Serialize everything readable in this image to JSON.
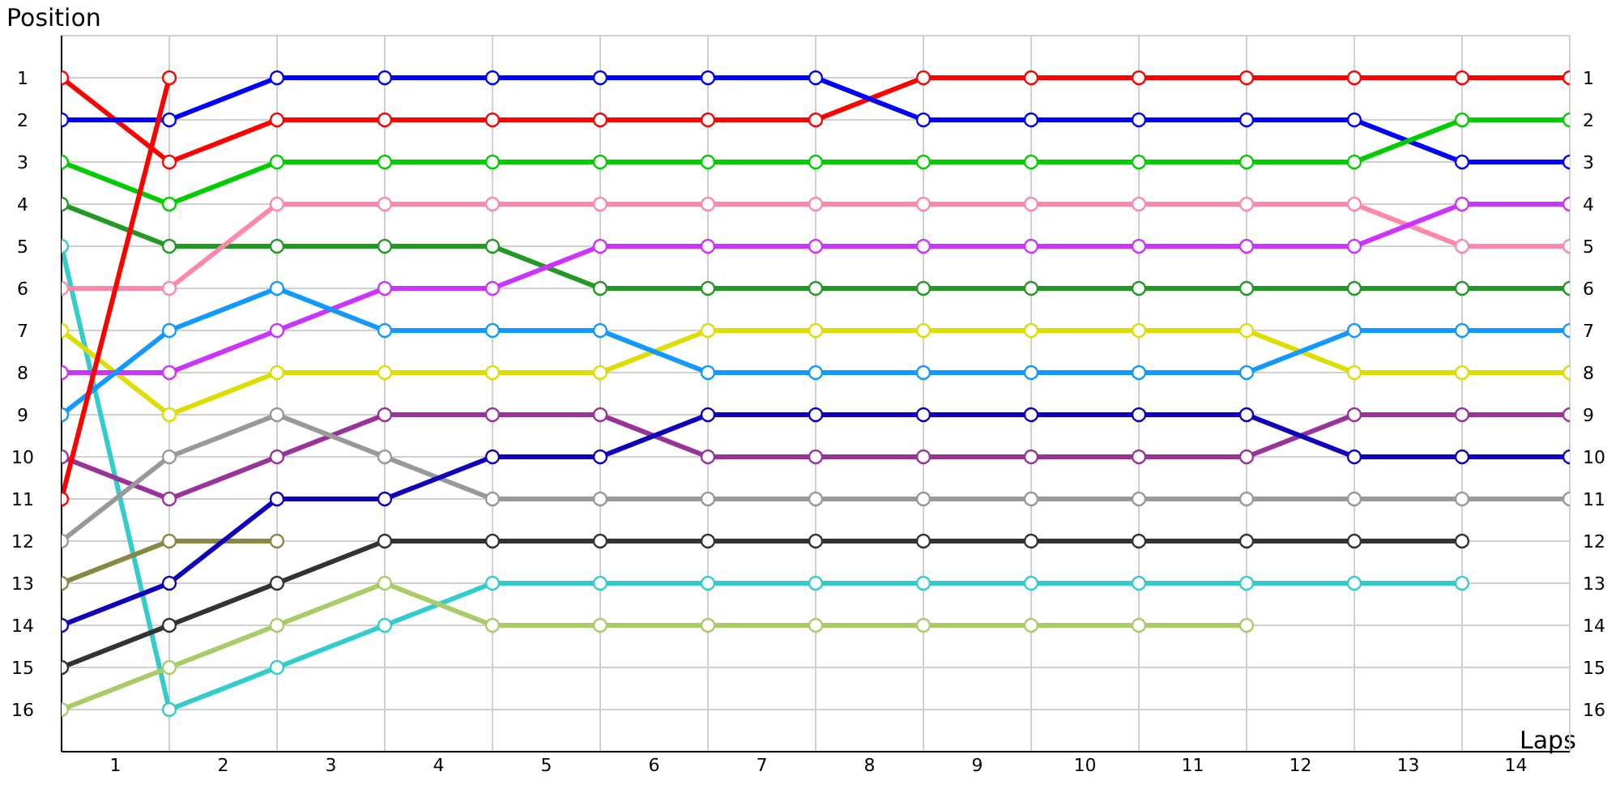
{
  "chart_data": {
    "type": "line",
    "xlabel": "Laps",
    "ylabel": "Position",
    "xlim": [
      0,
      14
    ],
    "xticks": [
      {
        "value": 0,
        "label": null
      },
      {
        "value": 0.5,
        "label": "1"
      },
      {
        "value": 1,
        "label": null
      },
      {
        "value": 1.5,
        "label": "2"
      },
      {
        "value": 2,
        "label": null
      },
      {
        "value": 2.5,
        "label": "3"
      },
      {
        "value": 3,
        "label": null
      },
      {
        "value": 3.5,
        "label": "4"
      },
      {
        "value": 4,
        "label": null
      },
      {
        "value": 4.5,
        "label": "5"
      },
      {
        "value": 5,
        "label": null
      },
      {
        "value": 5.5,
        "label": "6"
      },
      {
        "value": 6,
        "label": null
      },
      {
        "value": 6.5,
        "label": "7"
      },
      {
        "value": 7,
        "label": null
      },
      {
        "value": 7.5,
        "label": "8"
      },
      {
        "value": 8,
        "label": null
      },
      {
        "value": 8.5,
        "label": "9"
      },
      {
        "value": 9,
        "label": null
      },
      {
        "value": 9.5,
        "label": "10"
      },
      {
        "value": 10,
        "label": null
      },
      {
        "value": 10.5,
        "label": "11"
      },
      {
        "value": 11,
        "label": null
      },
      {
        "value": 11.5,
        "label": "12"
      },
      {
        "value": 12,
        "label": null
      },
      {
        "value": 12.5,
        "label": "13"
      },
      {
        "value": 13,
        "label": null
      },
      {
        "value": 13.5,
        "label": "14"
      },
      {
        "value": 14,
        "label": null
      }
    ],
    "ylim": [
      17,
      0
    ],
    "yticks": [
      1,
      2,
      3,
      4,
      5,
      6,
      7,
      8,
      9,
      10,
      11,
      12,
      13,
      14,
      15,
      16
    ],
    "y2lim": [
      17,
      0
    ],
    "y2ticks": [
      1,
      2,
      3,
      4,
      5,
      6,
      7,
      8,
      9,
      10,
      11,
      12,
      13,
      14,
      15,
      16
    ],
    "x": [
      0,
      1,
      2,
      3,
      4,
      5,
      6,
      7,
      8,
      9,
      10,
      11,
      12,
      13,
      14
    ],
    "grid": true,
    "marker": "circle",
    "line_style": "solid",
    "series": [
      {
        "color": "#ff0000",
        "values": [
          1,
          3,
          2,
          2,
          2,
          2,
          2,
          2,
          1,
          1,
          1,
          1,
          1,
          1,
          1
        ]
      },
      {
        "color": "#0000ff",
        "values": [
          2,
          2,
          1,
          1,
          1,
          1,
          1,
          1,
          2,
          2,
          2,
          2,
          2,
          3,
          3
        ]
      },
      {
        "color": "#00cc00",
        "values": [
          3,
          4,
          3,
          3,
          3,
          3,
          3,
          3,
          3,
          3,
          3,
          3,
          3,
          2,
          2
        ]
      },
      {
        "color": "#229922",
        "values": [
          4,
          5,
          5,
          5,
          5,
          6,
          6,
          6,
          6,
          6,
          6,
          6,
          6,
          6,
          6
        ]
      },
      {
        "color": "#33cccc",
        "values": [
          5,
          16,
          15,
          14,
          13,
          13,
          13,
          13,
          13,
          13,
          13,
          13,
          13,
          13,
          null
        ]
      },
      {
        "color": "#ff88aa",
        "values": [
          6,
          6,
          4,
          4,
          4,
          4,
          4,
          4,
          4,
          4,
          4,
          4,
          4,
          5,
          5
        ]
      },
      {
        "color": "#dddd00",
        "values": [
          7,
          9,
          8,
          8,
          8,
          8,
          7,
          7,
          7,
          7,
          7,
          7,
          8,
          8,
          8
        ]
      },
      {
        "color": "#cc33ff",
        "values": [
          8,
          8,
          7,
          6,
          6,
          5,
          5,
          5,
          5,
          5,
          5,
          5,
          5,
          4,
          4
        ]
      },
      {
        "color": "#1199ff",
        "values": [
          9,
          7,
          6,
          7,
          7,
          7,
          8,
          8,
          8,
          8,
          8,
          8,
          7,
          7,
          7
        ]
      },
      {
        "color": "#993399",
        "values": [
          10,
          11,
          10,
          9,
          9,
          9,
          10,
          10,
          10,
          10,
          10,
          10,
          9,
          9,
          9
        ]
      },
      {
        "color": "#ff0000",
        "values": [
          11,
          1,
          null,
          null,
          null,
          null,
          null,
          null,
          null,
          null,
          null,
          null,
          null,
          null,
          null
        ]
      },
      {
        "color": "#999999",
        "values": [
          12,
          10,
          9,
          10,
          11,
          11,
          11,
          11,
          11,
          11,
          11,
          11,
          11,
          11,
          11
        ]
      },
      {
        "color": "#888844",
        "values": [
          13,
          12,
          12,
          null,
          null,
          null,
          null,
          null,
          null,
          null,
          null,
          null,
          null,
          null,
          null
        ]
      },
      {
        "color": "#1100bb",
        "values": [
          14,
          13,
          11,
          11,
          10,
          10,
          9,
          9,
          9,
          9,
          9,
          9,
          10,
          10,
          10
        ]
      },
      {
        "color": "#333333",
        "values": [
          15,
          14,
          13,
          12,
          12,
          12,
          12,
          12,
          12,
          12,
          12,
          12,
          12,
          12,
          null
        ]
      },
      {
        "color": "#aacc66",
        "values": [
          16,
          15,
          14,
          13,
          14,
          14,
          14,
          14,
          14,
          14,
          14,
          14,
          null,
          null,
          null
        ]
      }
    ]
  }
}
